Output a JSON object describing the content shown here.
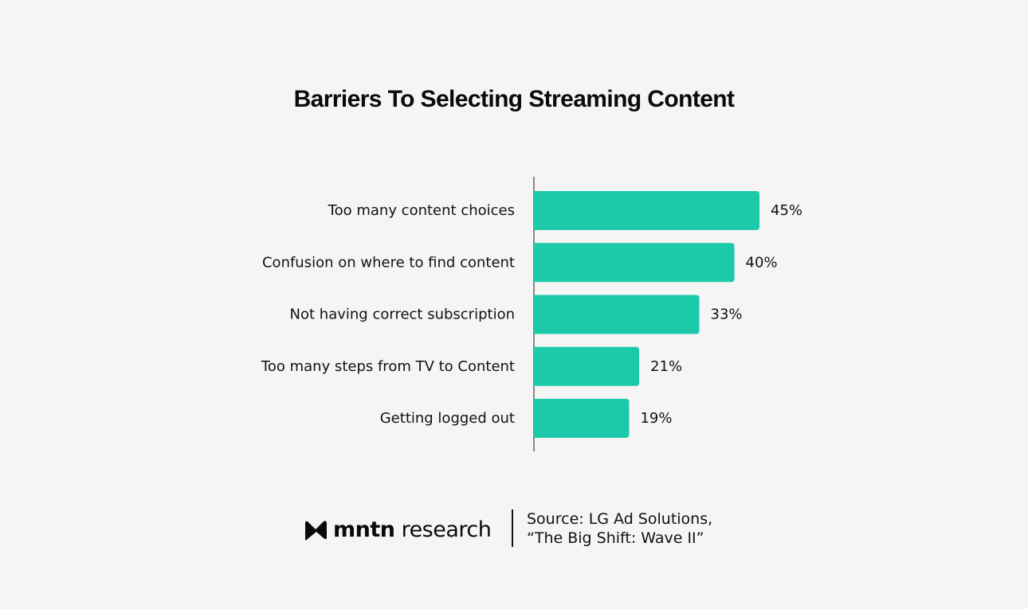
{
  "chart_data": {
    "type": "bar",
    "orientation": "horizontal",
    "title": "Barriers To Selecting Streaming Content",
    "categories": [
      "Too many content choices",
      "Confusion on where to find content",
      "Not having correct subscription",
      "Too many steps from TV to Content",
      "Getting logged out"
    ],
    "values": [
      45,
      40,
      33,
      21,
      19
    ],
    "value_labels": [
      "45%",
      "40%",
      "33%",
      "21%",
      "19%"
    ],
    "unit": "%",
    "xlim": [
      0,
      45
    ],
    "grid": false,
    "bar_color": "#1ccaaa"
  },
  "footer": {
    "brand_bold": "mntn",
    "brand_rest": " research",
    "source_line1": "Source: LG Ad Solutions,",
    "source_line2": "“The Big Shift: Wave II”"
  },
  "colors": {
    "background": "#f5f5f5",
    "bar": "#1ccaaa",
    "text": "#111111",
    "axis": "#888888"
  }
}
